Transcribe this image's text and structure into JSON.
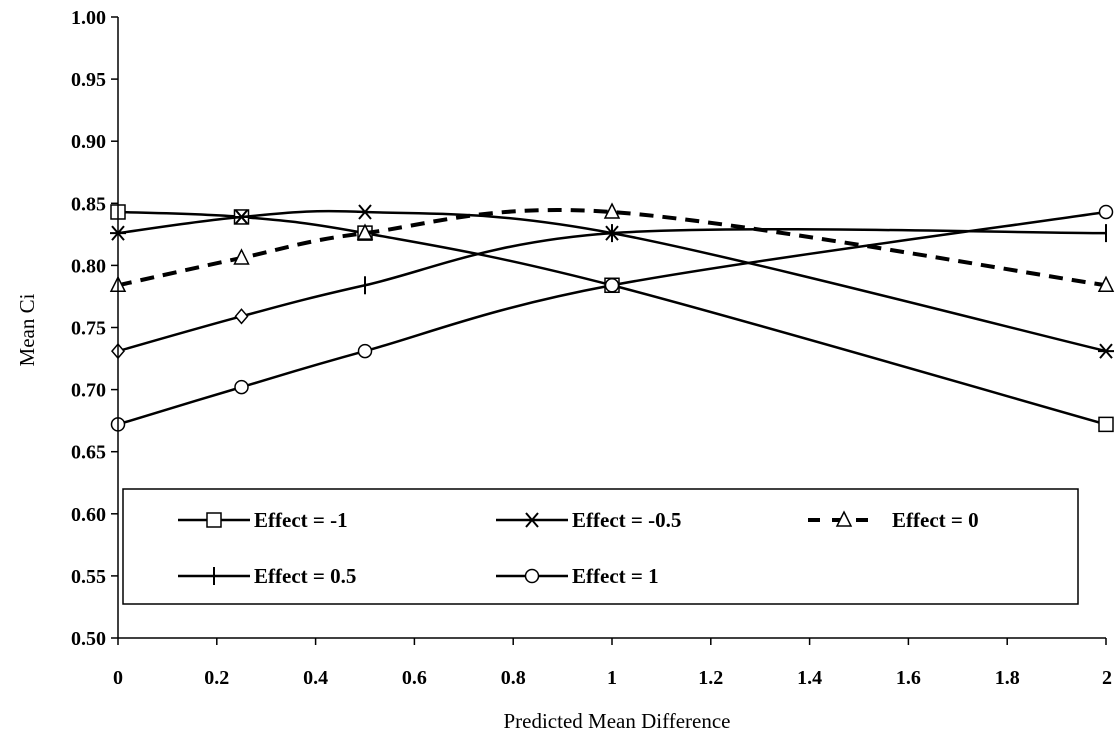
{
  "chart_data": {
    "type": "line",
    "xlabel": "Predicted Mean Difference",
    "ylabel": "Mean Ci",
    "xlim": [
      0,
      2
    ],
    "ylim": [
      0.5,
      1.0
    ],
    "x_tick_labels": [
      "0",
      "0.2",
      "0.4",
      "0.6",
      "0.8",
      "1",
      "1.2",
      "1.4",
      "1.6",
      "1.8",
      "2"
    ],
    "y_tick_labels": [
      "0.50",
      "0.55",
      "0.60",
      "0.65",
      "0.70",
      "0.75",
      "0.80",
      "0.85",
      "0.90",
      "0.95",
      "1.00"
    ],
    "legend_position": "bottom (inside plot)",
    "x": [
      0,
      0.25,
      0.5,
      1,
      2
    ],
    "series": [
      {
        "name": "Effect = -1",
        "marker": "square",
        "dashed": false,
        "values": [
          0.843,
          0.839,
          0.826,
          0.784,
          0.672
        ]
      },
      {
        "name": "Effect = -0.5",
        "marker": "asterisk",
        "dashed": false,
        "values": [
          0.826,
          0.839,
          0.843,
          0.826,
          0.731
        ]
      },
      {
        "name": "Effect = 0",
        "marker": "triangle",
        "dashed": true,
        "values": [
          0.784,
          0.806,
          0.826,
          0.843,
          0.784
        ]
      },
      {
        "name": "Effect = 0.5",
        "marker": "plus",
        "dashed": false,
        "values": [
          0.731,
          0.759,
          0.784,
          0.826,
          0.826
        ]
      },
      {
        "name": "Effect = 1",
        "marker": "circle",
        "dashed": false,
        "values": [
          0.672,
          0.702,
          0.731,
          0.784,
          0.843
        ]
      }
    ]
  }
}
